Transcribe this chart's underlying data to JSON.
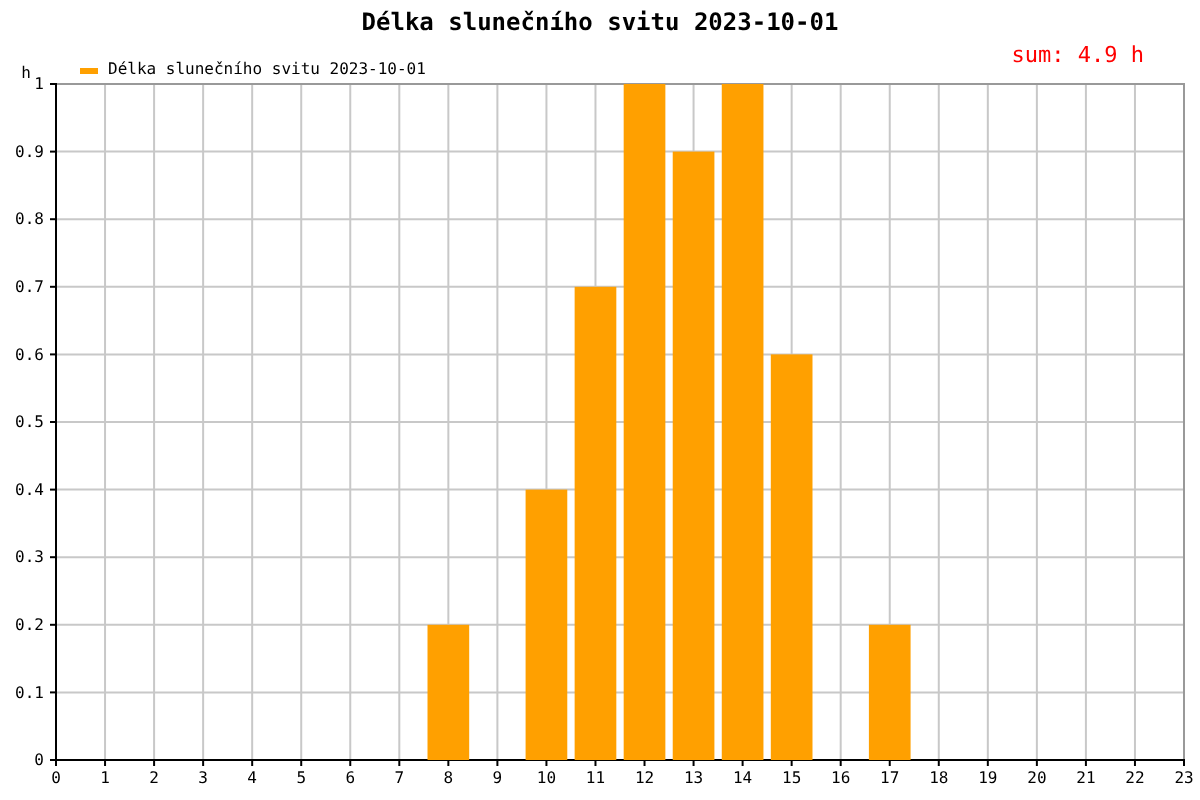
{
  "chart_data": {
    "type": "bar",
    "title": "Délka slunečního svitu 2023-10-01",
    "ylabel": "h",
    "x": [
      8,
      10,
      11,
      12,
      13,
      14,
      15,
      17
    ],
    "series": [
      {
        "name": "Délka slunečního svitu 2023-10-01",
        "color": "#ffa000",
        "values": [
          0.2,
          0.4,
          0.7,
          1,
          0.9,
          1,
          0.6,
          0.2
        ]
      }
    ],
    "xlim": [
      0,
      23
    ],
    "xticks": [
      0,
      1,
      2,
      3,
      4,
      5,
      6,
      7,
      8,
      9,
      10,
      11,
      12,
      13,
      14,
      15,
      16,
      17,
      18,
      19,
      20,
      21,
      22,
      23
    ],
    "ylim": [
      0,
      1
    ],
    "yticks": [
      0,
      0.1,
      0.2,
      0.3,
      0.4,
      0.5,
      0.6,
      0.7,
      0.8,
      0.9,
      1
    ],
    "annotations": [
      "sum: 4.9 h"
    ],
    "grid": true,
    "legend": "top left"
  }
}
